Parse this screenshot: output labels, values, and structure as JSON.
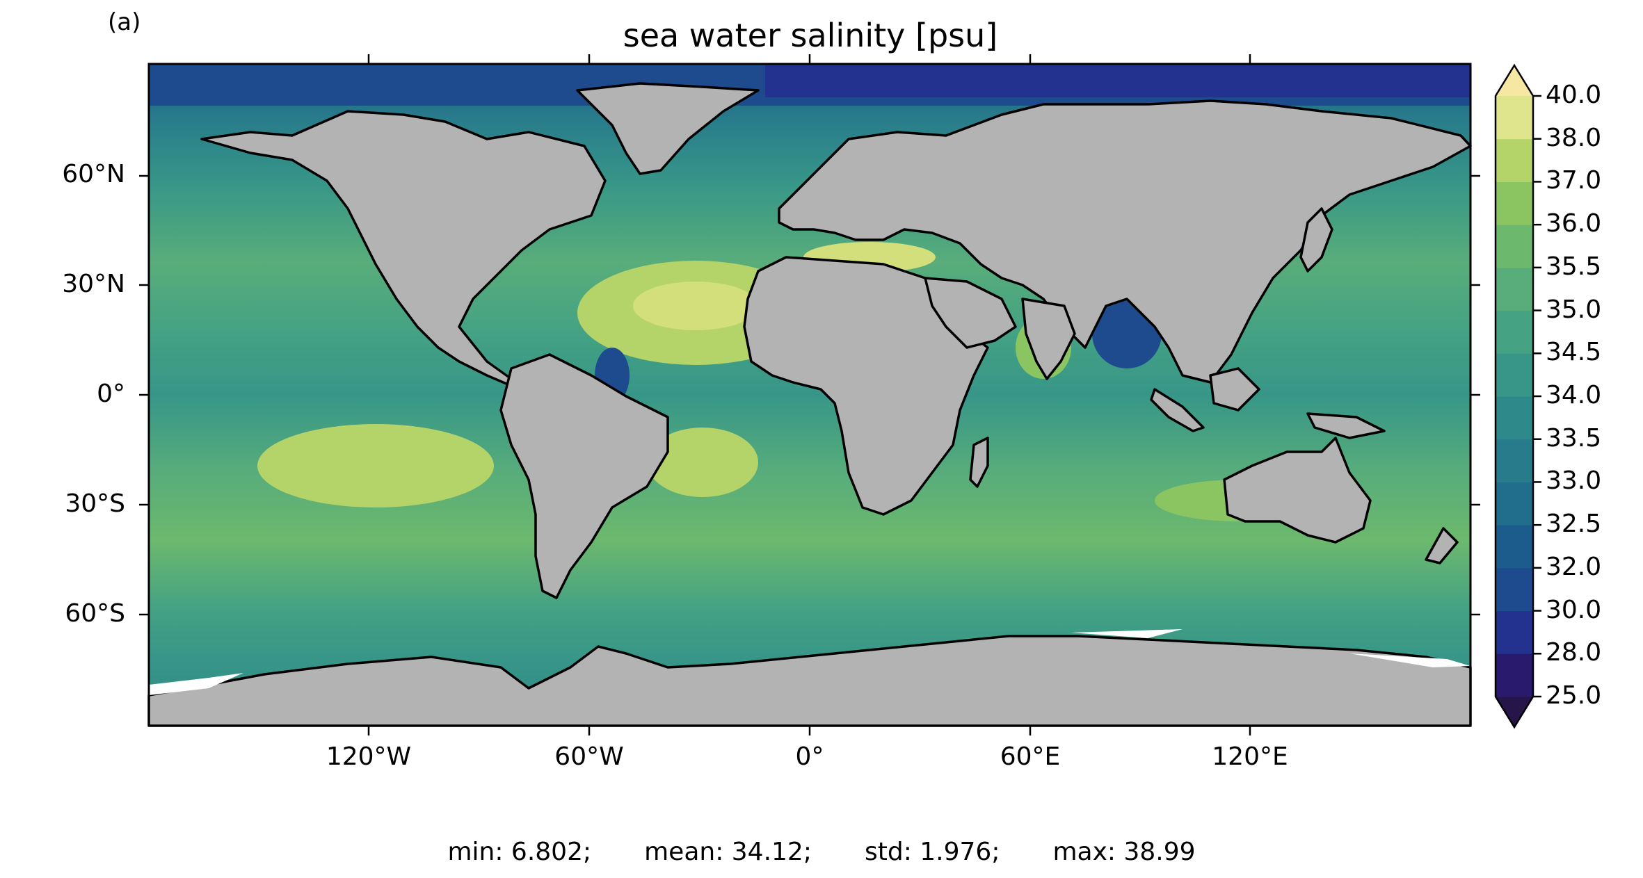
{
  "panel_label": "(a)",
  "title": "sea water salinity [psu]",
  "map": {
    "projection": "equirectangular",
    "extent_lon": [
      -180,
      180
    ],
    "extent_lat": [
      -90,
      90
    ],
    "land_color": "#b3b3b3",
    "coastline_color": "#000000",
    "missing_color": "#ffffff",
    "lat_ticks": [
      {
        "value": 60,
        "label": "60°N"
      },
      {
        "value": 30,
        "label": "30°N"
      },
      {
        "value": 0,
        "label": "0°"
      },
      {
        "value": -30,
        "label": "30°S"
      },
      {
        "value": -60,
        "label": "60°S"
      }
    ],
    "lon_ticks": [
      {
        "value": -120,
        "label": "120°W"
      },
      {
        "value": -60,
        "label": "60°W"
      },
      {
        "value": 0,
        "label": "0°"
      },
      {
        "value": 60,
        "label": "60°E"
      },
      {
        "value": 120,
        "label": "120°E"
      }
    ],
    "salinity_field_description_levels": "filled contours of sea surface salinity"
  },
  "colorbar": {
    "levels": [
      "25.0",
      "28.0",
      "30.0",
      "32.0",
      "32.5",
      "33.0",
      "33.5",
      "34.0",
      "34.5",
      "35.0",
      "35.5",
      "36.0",
      "37.0",
      "38.0",
      "40.0"
    ],
    "colors": [
      "#2a1a6e",
      "#23328f",
      "#1d4b8e",
      "#1b5c8c",
      "#216d8c",
      "#287b8b",
      "#2e898a",
      "#379688",
      "#45a283",
      "#58ad7a",
      "#6cb86d",
      "#8bc561",
      "#b4d46a",
      "#dfe58c"
    ],
    "extend_low_color": "#261548",
    "extend_high_color": "#f6e8a2"
  },
  "stats": {
    "min": "min: 6.802;",
    "mean": "mean: 34.12;",
    "std": "std: 1.976;",
    "max": "max: 38.99"
  }
}
